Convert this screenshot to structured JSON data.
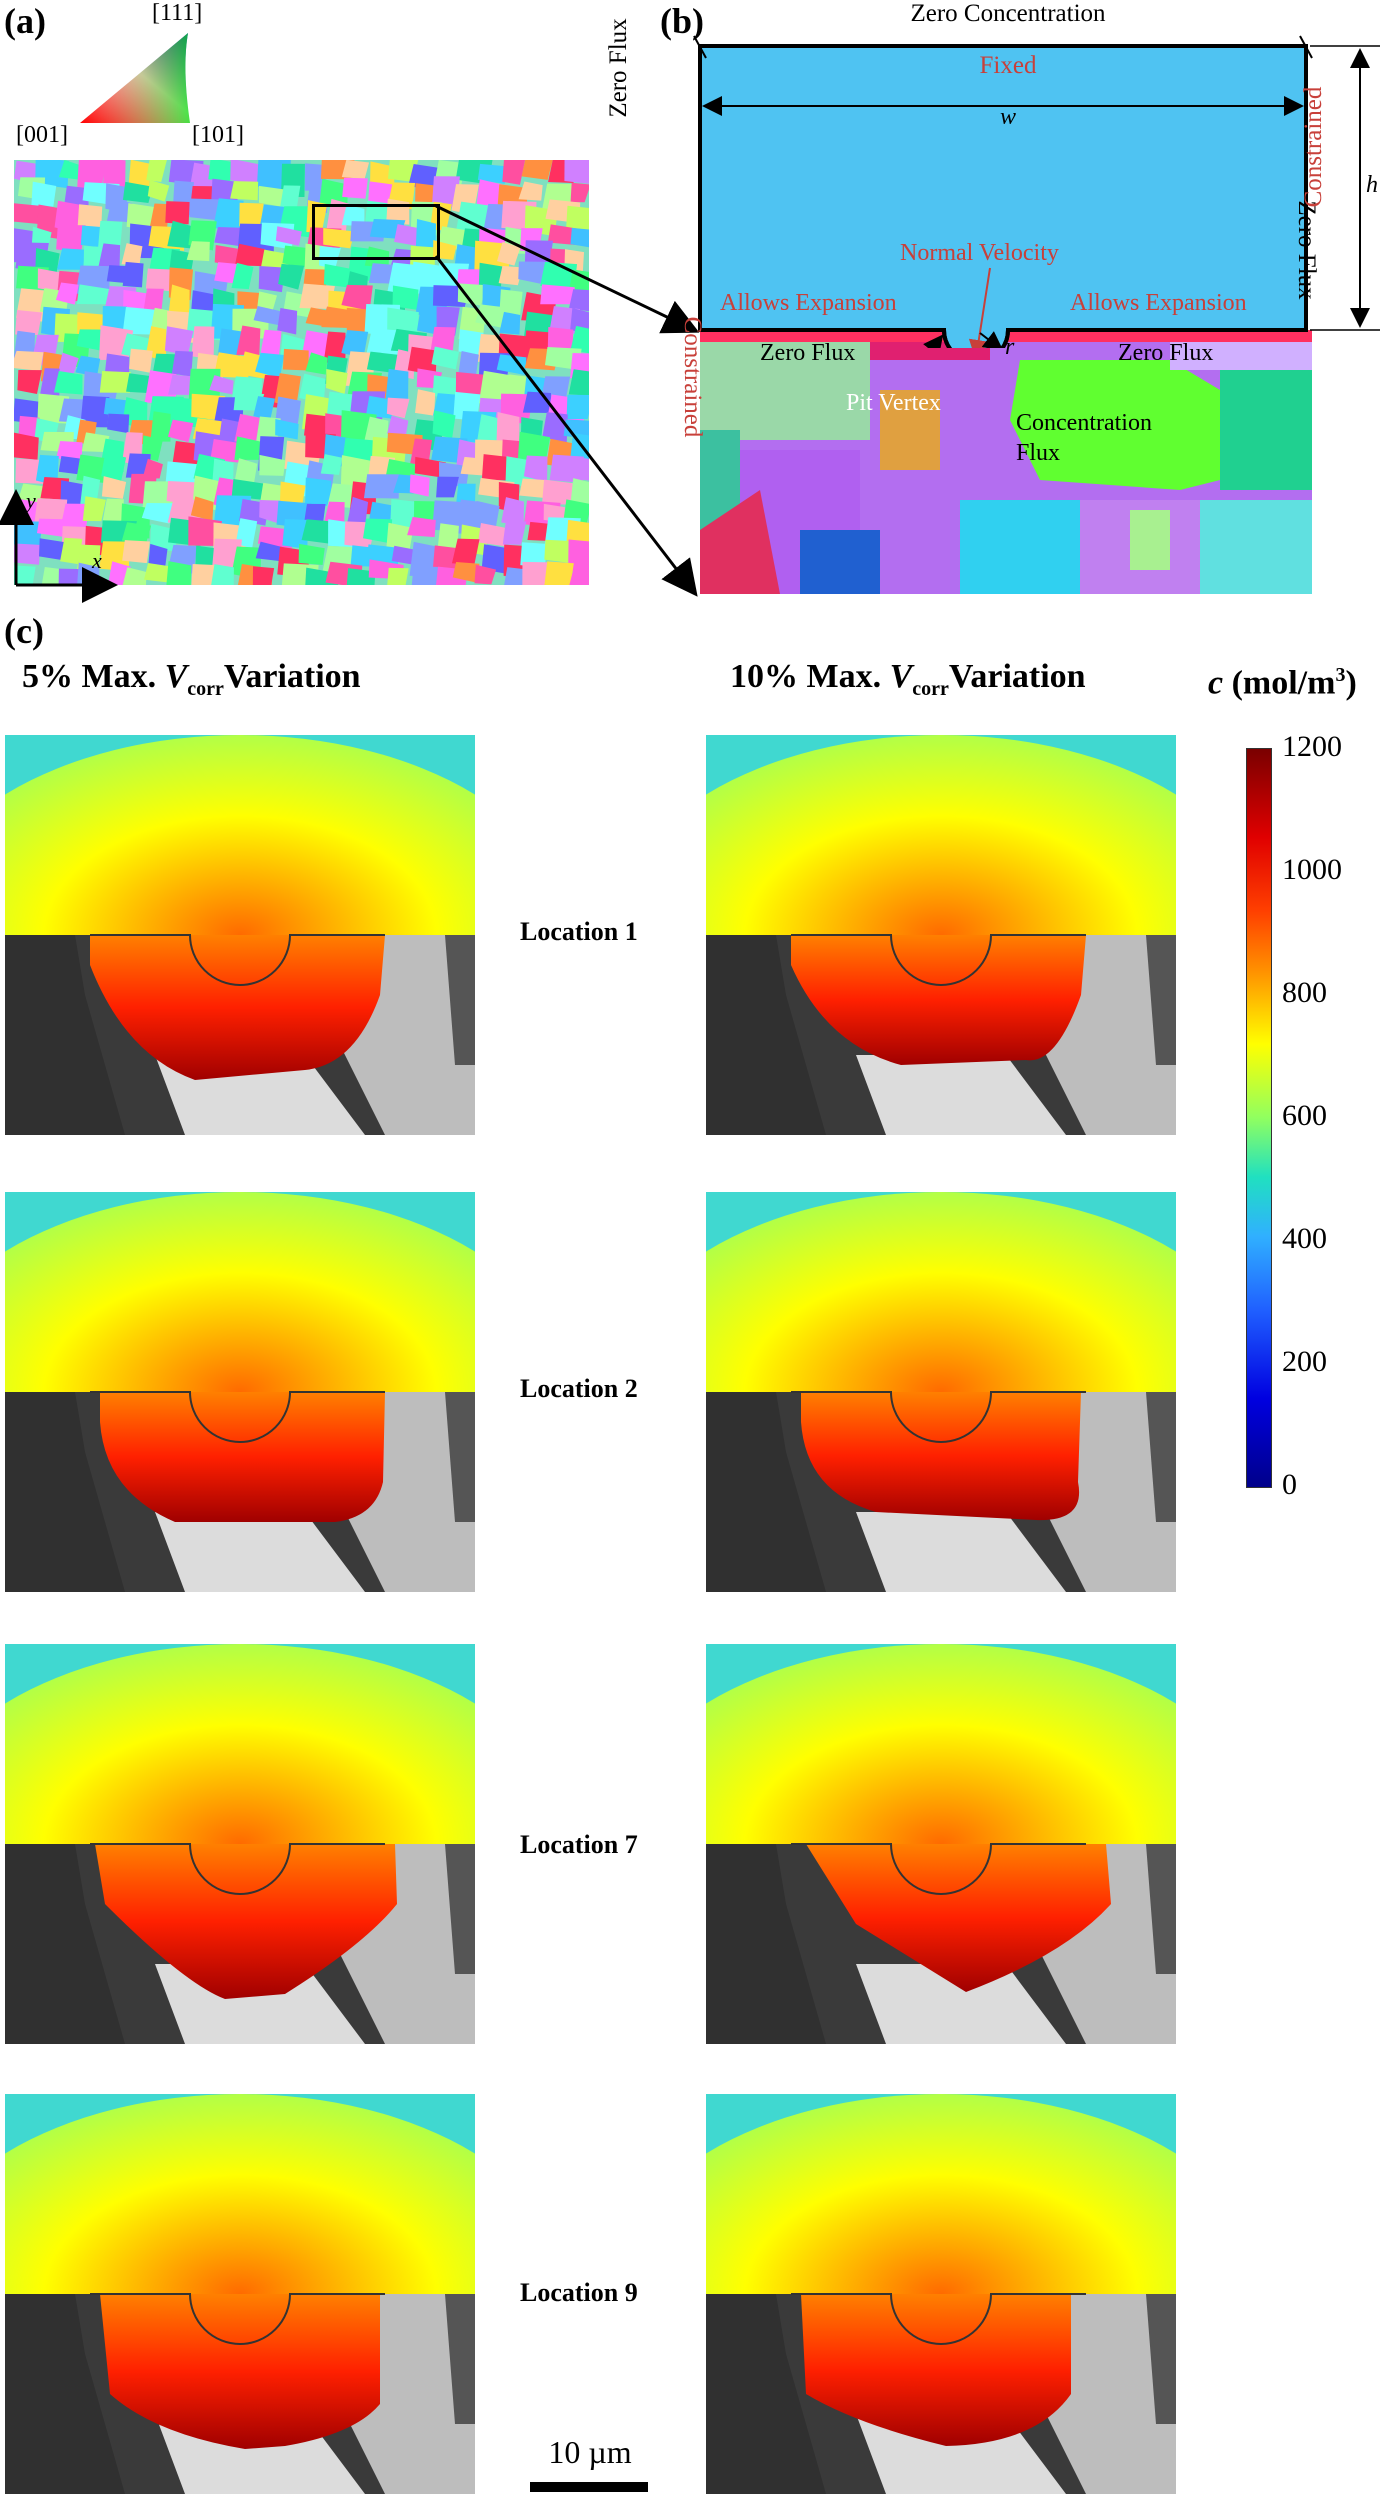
{
  "panel_a": {
    "label": "(a)",
    "ipf": {
      "top": "[111]",
      "left": "[001]",
      "right": "[101]"
    },
    "axes": {
      "y": "y",
      "x": "x"
    }
  },
  "panel_b": {
    "label": "(b)",
    "top": "Zero Concentration",
    "fixed": "Fixed",
    "width_symbol": "w",
    "height_symbol": "h",
    "left_flux": "Zero Flux",
    "right_flux": "Zero Flux",
    "left_constrained": "Constrained",
    "right_constrained": "Constrained",
    "normal_velocity": "Normal Velocity",
    "left_expansion": "Allows Expansion",
    "right_expansion": "Allows Expansion",
    "zero_flux_left": "Zero Flux",
    "zero_flux_right": "Zero Flux",
    "radius_symbol": "r",
    "pit_vertex": "Pit Vertex",
    "concentration_flux": "Concentration Flux"
  },
  "panel_c": {
    "label": "(c)",
    "left_heading": {
      "pre": "5% Max. ",
      "V": "V",
      "sub": "corr",
      "post": "Variation"
    },
    "right_heading": {
      "pre": "10% Max. ",
      "V": "V",
      "sub": "corr",
      "post": "Variation"
    },
    "colorbar_title": {
      "c": "c",
      "unit": " (mol/m",
      "sup": "3",
      "close": ")"
    },
    "colorbar_ticks": [
      "1200",
      "1000",
      "800",
      "600",
      "400",
      "200",
      "0"
    ],
    "locations": [
      "Location 1",
      "Location 2",
      "Location 7",
      "Location 9"
    ],
    "scalebar": "10 µm"
  }
}
